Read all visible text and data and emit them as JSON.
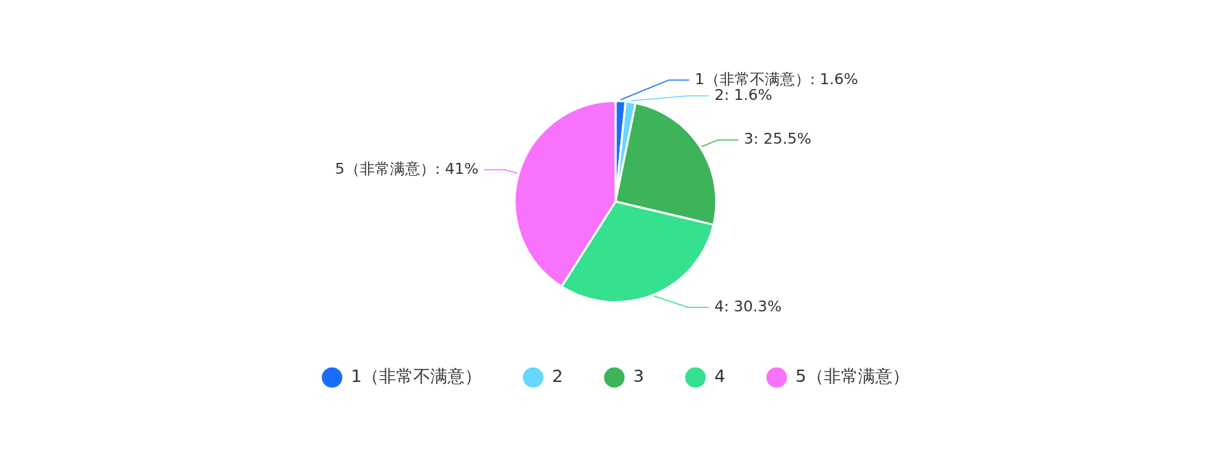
{
  "chart_data": {
    "type": "pie",
    "categories": [
      "1（非常不满意）",
      "2",
      "3",
      "4",
      "5（非常满意）"
    ],
    "values": [
      1.6,
      1.6,
      25.5,
      30.3,
      41
    ],
    "colors": [
      "#1a6dff",
      "#66d7ff",
      "#3db35a",
      "#35e08f",
      "#f872fc"
    ],
    "value_labels": [
      "1（非常不满意）: 1.6%",
      "2: 1.6%",
      "3: 25.5%",
      "4: 30.3%",
      "5（非常满意）: 41%"
    ],
    "legend": "bottom"
  }
}
